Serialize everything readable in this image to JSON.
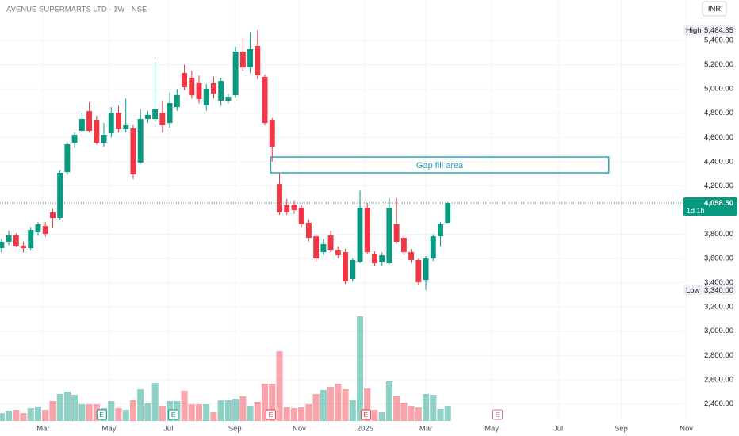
{
  "chart_data": {
    "type": "candlestick",
    "title": "AVENUE SUPERMARTS LTD · 1W · NSE",
    "currency": "INR",
    "up_color": "#089981",
    "down_color": "#f23645",
    "grid": true,
    "ylim": [
      2265,
      5734
    ],
    "yticks": [
      {
        "value": 5400,
        "label": "5,400.00"
      },
      {
        "value": 5200,
        "label": "5,200.00"
      },
      {
        "value": 5000,
        "label": "5,000.00"
      },
      {
        "value": 4800,
        "label": "4,800.00"
      },
      {
        "value": 4600,
        "label": "4,600.00"
      },
      {
        "value": 4400,
        "label": "4,400.00"
      },
      {
        "value": 4200,
        "label": "4,200.00"
      },
      {
        "value": 3800,
        "label": "3,800.00"
      },
      {
        "value": 3600,
        "label": "3,600.00"
      },
      {
        "value": 3400,
        "label": "3,400.00"
      },
      {
        "value": 3200,
        "label": "3,200.00"
      },
      {
        "value": 3000,
        "label": "3,000.00"
      },
      {
        "value": 2800,
        "label": "2,800.00"
      },
      {
        "value": 2600,
        "label": "2,600.00"
      },
      {
        "value": 2400,
        "label": "2,400.00"
      }
    ],
    "xlim": [
      -0.2,
      100.8
    ],
    "xticks": [
      {
        "value": 5.7,
        "label": "Mar"
      },
      {
        "value": 14.7,
        "label": "May"
      },
      {
        "value": 22.8,
        "label": "Jul"
      },
      {
        "value": 31.9,
        "label": "Sep"
      },
      {
        "value": 40.7,
        "label": "Nov"
      },
      {
        "value": 49.7,
        "label": "2025"
      },
      {
        "value": 58,
        "label": "Mar"
      },
      {
        "value": 67,
        "label": "May"
      },
      {
        "value": 76.1,
        "label": "Jul"
      },
      {
        "value": 84.7,
        "label": "Sep"
      },
      {
        "value": 93.6,
        "label": "Nov"
      }
    ],
    "open": [
      3685,
      3738,
      3790,
      3705,
      3685,
      3816,
      3868,
      3980,
      3934,
      4313,
      4556,
      4654,
      4817,
      4739,
      4556,
      4634,
      4804,
      4667,
      4673,
      4392,
      4752,
      4752,
      4804,
      4719,
      4850,
      5132,
      5092,
      5047,
      4863,
      5047,
      4903,
      4903,
      4948,
      5308,
      5177,
      5354,
      5099,
      4739,
      4215,
      4045,
      4045,
      4019,
      3895,
      3783,
      3652,
      3790,
      3672,
      3652,
      3430,
      3574,
      4019,
      3639,
      3570,
      3561,
      3882,
      3770,
      3652,
      3587,
      3423,
      3600,
      3783,
      3895
    ],
    "high": [
      3760,
      3830,
      3810,
      3740,
      3860,
      3900,
      3900,
      4010,
      4330,
      4560,
      4640,
      4800,
      4890,
      4780,
      4720,
      4850,
      4860,
      4920,
      4700,
      4830,
      4820,
      5220,
      4900,
      4970,
      5000,
      5200,
      5150,
      5110,
      5040,
      5100,
      5090,
      4960,
      5350,
      5420,
      5470,
      5484.85,
      5120,
      4760,
      4300,
      4090,
      4080,
      4040,
      3920,
      3800,
      3760,
      3830,
      3700,
      3680,
      3600,
      4160,
      4060,
      3660,
      3650,
      4100,
      4100,
      3790,
      3680,
      3600,
      3620,
      3800,
      3900,
      4065
    ],
    "low": [
      3650,
      3710,
      3690,
      3650,
      3670,
      3790,
      3780,
      3850,
      3920,
      4290,
      4510,
      4640,
      4640,
      4540,
      4520,
      4600,
      4640,
      4640,
      4255,
      4380,
      4720,
      4730,
      4640,
      4680,
      4820,
      4990,
      4920,
      4880,
      4820,
      4920,
      4860,
      4880,
      4930,
      5150,
      5130,
      5080,
      4700,
      4400,
      3960,
      3960,
      3970,
      3860,
      3740,
      3570,
      3630,
      3650,
      3600,
      3390,
      3410,
      3560,
      3640,
      3540,
      3540,
      3550,
      3720,
      3630,
      3560,
      3380,
      3340,
      3580,
      3700,
      3890
    ],
    "close": [
      3738,
      3790,
      3705,
      3685,
      3836,
      3882,
      3803,
      3934,
      4307,
      4543,
      4621,
      4752,
      4654,
      4556,
      4621,
      4804,
      4667,
      4700,
      4294,
      4752,
      4785,
      4831,
      4700,
      4883,
      4950,
      5014,
      4948,
      4916,
      5001,
      4961,
      5066,
      4935,
      5308,
      5177,
      5328,
      5112,
      4719,
      4523,
      3980,
      3980,
      4000,
      3882,
      3770,
      3600,
      3718,
      3672,
      3626,
      3410,
      3587,
      4019,
      3652,
      3561,
      3626,
      4019,
      3738,
      3652,
      3587,
      3404,
      3600,
      3783,
      3882,
      4058.5
    ],
    "volume": [
      10,
      13,
      14,
      10,
      16,
      18,
      14,
      25,
      34,
      37,
      33,
      21,
      21,
      21,
      16,
      25,
      16,
      14,
      26,
      40,
      22,
      48,
      19,
      25,
      25,
      38,
      21,
      21,
      21,
      11,
      26,
      26,
      28,
      31,
      19,
      24,
      47,
      47,
      88,
      17,
      16,
      17,
      21,
      34,
      39,
      43,
      47,
      40,
      26,
      132,
      41,
      14,
      11,
      50,
      31,
      23,
      19,
      17,
      34,
      33,
      15,
      19
    ],
    "high_marker": {
      "name": "High",
      "value": 5484.85,
      "label": "5,484.85"
    },
    "low_marker": {
      "name": "Low",
      "value": 3340,
      "label": "3,340.00"
    },
    "last_price": {
      "value": 4058.5,
      "label": "4,058.50",
      "countdown": "1d 1h"
    },
    "annotation": {
      "text": "Gap fill area",
      "x": [
        36.8,
        83
      ],
      "y": [
        4307,
        4438
      ],
      "color": "#22a6b8"
    },
    "events": [
      {
        "label": "E",
        "x": 13.7,
        "color": "#089981"
      },
      {
        "label": "E",
        "x": 23.5,
        "color": "#089981"
      },
      {
        "label": "E",
        "x": 36.8,
        "color": "#f23645"
      },
      {
        "label": "E",
        "x": 49.8,
        "color": "#f23645"
      },
      {
        "label": "E",
        "x": 67.8,
        "color": "#c9719a"
      }
    ]
  }
}
